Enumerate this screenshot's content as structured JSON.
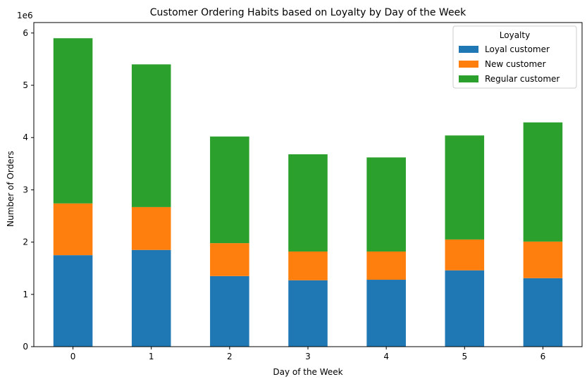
{
  "chart_data": {
    "type": "bar",
    "stacked": true,
    "title": "Customer Ordering Habits based on Loyalty by Day of the Week",
    "xlabel": "Day of the Week",
    "ylabel": "Number of Orders",
    "y_offset_label": "1e6",
    "categories": [
      "0",
      "1",
      "2",
      "3",
      "4",
      "5",
      "6"
    ],
    "series": [
      {
        "name": "Loyal customer",
        "color": "#1f77b4",
        "values": [
          1750000,
          1850000,
          1350000,
          1270000,
          1280000,
          1460000,
          1310000
        ]
      },
      {
        "name": "New customer",
        "color": "#ff7f0e",
        "values": [
          990000,
          820000,
          630000,
          550000,
          540000,
          590000,
          700000
        ]
      },
      {
        "name": "Regular customer",
        "color": "#2ca02c",
        "values": [
          3160000,
          2730000,
          2040000,
          1860000,
          1800000,
          1990000,
          2280000
        ]
      }
    ],
    "ylim": [
      0,
      6200000
    ],
    "yticks": [
      0,
      1000000,
      2000000,
      3000000,
      4000000,
      5000000,
      6000000
    ],
    "ytick_labels": [
      "0",
      "1",
      "2",
      "3",
      "4",
      "5",
      "6"
    ],
    "legend": {
      "title": "Loyalty",
      "position": "top-right"
    },
    "grid": false
  }
}
